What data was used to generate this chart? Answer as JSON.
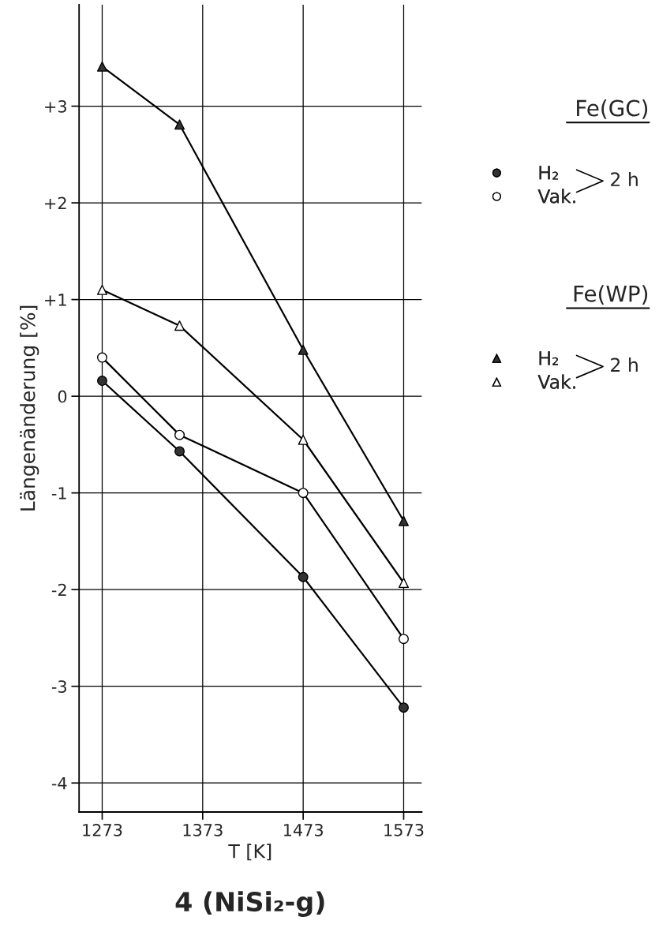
{
  "chart_data": {
    "type": "line",
    "title": "4 (NiSi₂-g)",
    "xlabel": "T [K]",
    "ylabel": "Längenänderung [%]",
    "x": [
      1273,
      1350,
      1473,
      1573
    ],
    "series": [
      {
        "name": "H₂",
        "color": "#333333",
        "marker": "circle",
        "values": [
          0.16,
          -0.57,
          -1.87,
          -3.22
        ]
      },
      {
        "name": "Vak.",
        "color": "#ffffff",
        "marker": "circle",
        "values": [
          0.4,
          -0.4,
          -1.0,
          -2.51
        ]
      },
      {
        "name": "H₂",
        "color": "#333333",
        "marker": "triangle",
        "values": [
          3.41,
          2.81,
          0.48,
          -1.29
        ]
      },
      {
        "name": "Vak.",
        "color": "#ffffff",
        "marker": "triangle",
        "values": [
          1.1,
          0.73,
          -0.45,
          -1.93
        ]
      }
    ],
    "annotations": [
      "Fe(GC)",
      "2 h",
      "Fe(WP)",
      "2 h"
    ],
    "xlim": [
      1250,
      1591
    ],
    "xticks": [
      1273,
      1373,
      1473,
      1573
    ],
    "ylim": [
      -4.3,
      4.05
    ],
    "yticks": [
      {
        "value": -4,
        "label": "-4"
      },
      {
        "value": -3,
        "label": "-3"
      },
      {
        "value": -2,
        "label": "-2"
      },
      {
        "value": -1,
        "label": "-1"
      },
      0,
      {
        "value": 1,
        "label": "+1"
      },
      {
        "value": 2,
        "label": "+2"
      },
      {
        "value": 3,
        "label": "+3"
      }
    ],
    "grid": true,
    "legend": "right",
    "line_style": "solid"
  }
}
